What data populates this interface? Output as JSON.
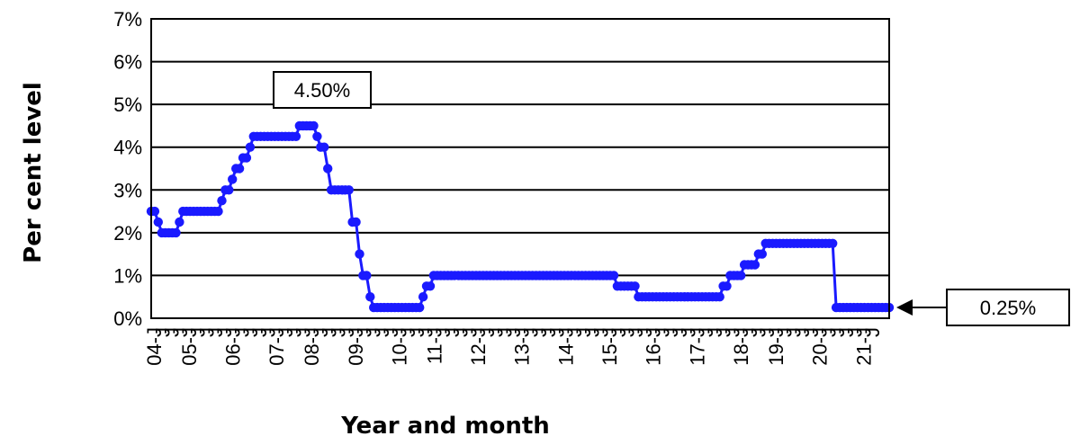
{
  "chart_data": {
    "type": "line",
    "title": "",
    "xlabel": "Year and month",
    "ylabel": "Per cent level",
    "ylim": [
      0,
      7
    ],
    "y_ticks": [
      "0%",
      "1%",
      "2%",
      "3%",
      "4%",
      "5%",
      "6%",
      "7%"
    ],
    "x_tick_labels": [
      "04-J",
      "J",
      "J",
      "J",
      "05-J",
      "J",
      "J",
      "J",
      "J",
      "06-J",
      "J",
      "J",
      "J",
      "J",
      "07-J",
      "J",
      "J",
      "J",
      "08-J",
      "J",
      "J",
      "J",
      "J",
      "09-J",
      "J",
      "J",
      "J",
      "J",
      "10-J",
      "J",
      "J",
      "J",
      "11-J",
      "J",
      "J",
      "J",
      "J",
      "12-J",
      "J",
      "J",
      "J",
      "J",
      "13-J",
      "J",
      "J",
      "J",
      "J",
      "14-J",
      "J",
      "J",
      "J",
      "J",
      "15-J",
      "J",
      "J",
      "J",
      "J",
      "16-J",
      "J",
      "J",
      "J",
      "J",
      "17-J",
      "J",
      "J",
      "J",
      "J",
      "18-J",
      "J",
      "J",
      "J",
      "19-J",
      "J",
      "J",
      "J",
      "J",
      "20-J",
      "J",
      "J",
      "J",
      "J",
      "21-J",
      "J"
    ],
    "grid": true,
    "color": "#1a1aff",
    "series": [
      {
        "name": "",
        "steps": [
          [
            "2004-01",
            2.5
          ],
          [
            "2004-03",
            2.25
          ],
          [
            "2004-04",
            2.0
          ],
          [
            "2004-09",
            2.25
          ],
          [
            "2004-10",
            2.5
          ],
          [
            "2005-09",
            2.75
          ],
          [
            "2005-10",
            3.0
          ],
          [
            "2005-12",
            3.25
          ],
          [
            "2006-01",
            3.5
          ],
          [
            "2006-03",
            3.75
          ],
          [
            "2006-05",
            4.0
          ],
          [
            "2006-06",
            4.25
          ],
          [
            "2007-07",
            4.5
          ],
          [
            "2007-12",
            4.25
          ],
          [
            "2008-01",
            4.0
          ],
          [
            "2008-03",
            3.5
          ],
          [
            "2008-04",
            3.0
          ],
          [
            "2008-10",
            2.25
          ],
          [
            "2008-12",
            1.5
          ],
          [
            "2009-01",
            1.0
          ],
          [
            "2009-03",
            0.5
          ],
          [
            "2009-04",
            0.25
          ],
          [
            "2010-06",
            0.5
          ],
          [
            "2010-07",
            0.75
          ],
          [
            "2010-09",
            1.0
          ],
          [
            "2015-01",
            0.75
          ],
          [
            "2015-07",
            0.5
          ],
          [
            "2017-07",
            0.75
          ],
          [
            "2017-09",
            1.0
          ],
          [
            "2018-01",
            1.25
          ],
          [
            "2018-05",
            1.5
          ],
          [
            "2018-07",
            1.75
          ],
          [
            "2020-03",
            0.25
          ]
        ],
        "end": "2021-06"
      }
    ],
    "annotations": [
      {
        "text": "4.50%",
        "x": "2007-07",
        "y": 4.5
      },
      {
        "text": "0.25%",
        "x": "2021-06",
        "y": 0.25
      }
    ]
  }
}
